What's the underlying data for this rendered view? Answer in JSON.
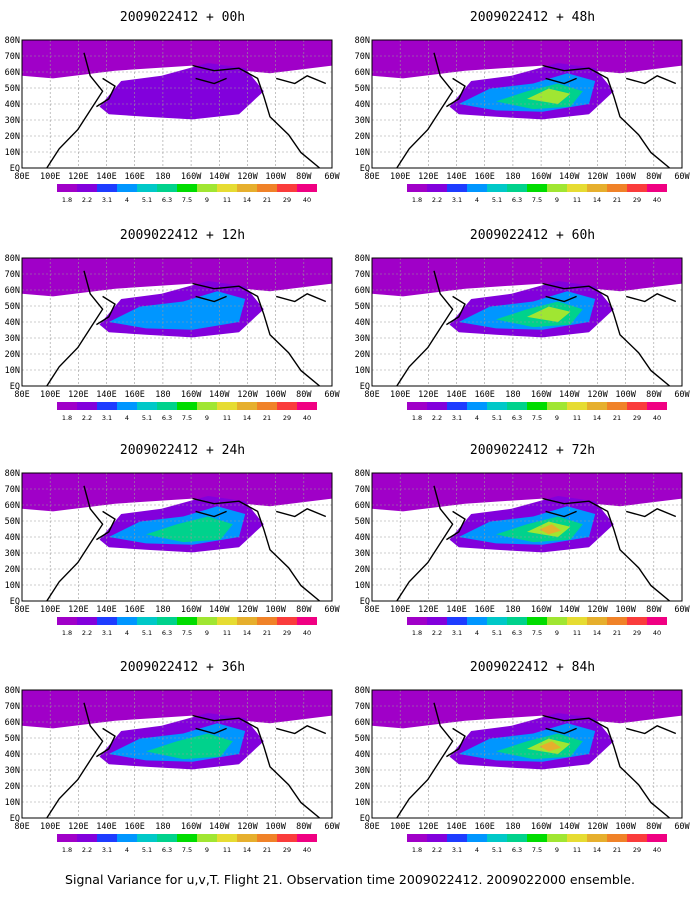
{
  "caption": "Signal Variance for u,v,T. Flight 21. Observation time 2009022412. 2009022000 ensemble.",
  "lat_labels": [
    "80N",
    "70N",
    "60N",
    "50N",
    "40N",
    "30N",
    "20N",
    "10N",
    "EQ"
  ],
  "lon_labels": [
    "80E",
    "100E",
    "120E",
    "140E",
    "160E",
    "180",
    "160W",
    "140W",
    "120W",
    "100W",
    "80W",
    "60W"
  ],
  "legend": {
    "labels": [
      "1.8",
      "2.2",
      "3.1",
      "4",
      "5.1",
      "6.3",
      "7.5",
      "9",
      "11",
      "14",
      "21",
      "29",
      "40"
    ],
    "colors": [
      "#a000c8",
      "#8200dc",
      "#1e3cff",
      "#0096ff",
      "#00c8c8",
      "#00d28c",
      "#00dc00",
      "#a0e632",
      "#e6dc32",
      "#e6af2d",
      "#f08228",
      "#fa3c3c",
      "#f00082"
    ]
  },
  "panels": [
    {
      "title": "2009022412 + 00h",
      "intensity": 0.25
    },
    {
      "title": "2009022412 + 48h",
      "intensity": 0.75
    },
    {
      "title": "2009022412 + 12h",
      "intensity": 0.4
    },
    {
      "title": "2009022412 + 60h",
      "intensity": 0.85
    },
    {
      "title": "2009022412 + 24h",
      "intensity": 0.55
    },
    {
      "title": "2009022412 + 72h",
      "intensity": 0.9
    },
    {
      "title": "2009022412 + 36h",
      "intensity": 0.65
    },
    {
      "title": "2009022412 + 84h",
      "intensity": 1.0
    }
  ]
}
